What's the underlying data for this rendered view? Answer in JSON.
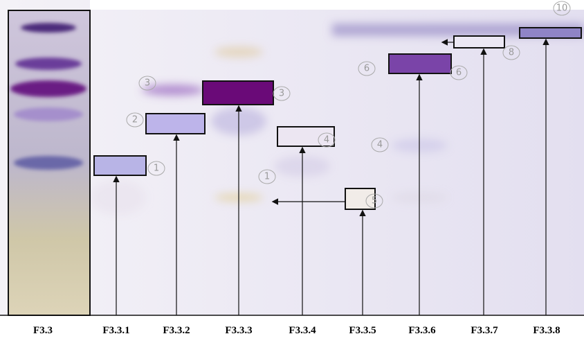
{
  "lanes": [
    "F3.3",
    "F3.3.1",
    "F3.3.2",
    "F3.3.3",
    "F3.3.4",
    "F3.3.5",
    "F3.3.6",
    "F3.3.7",
    "F3.3.8"
  ],
  "annotations": [
    "3",
    "2",
    "1",
    "3",
    "1",
    "4",
    "5",
    "4",
    "6",
    "6",
    "8",
    "10"
  ]
}
